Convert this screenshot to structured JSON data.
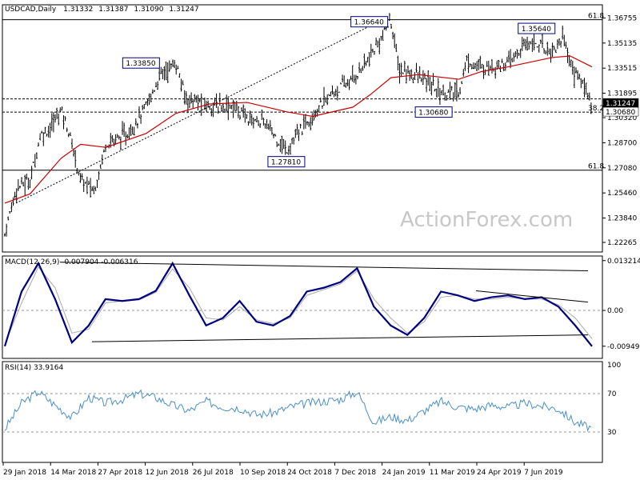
{
  "header": {
    "symbol": "USDCAD,Daily",
    "open": "1.31332",
    "high": "1.31387",
    "low": "1.31090",
    "close": "1.31247"
  },
  "watermark": "ActionForex.com",
  "chart_data": [
    {
      "type": "candlestick",
      "title": "USDCAD,Daily  1.31332 1.31387 1.31090 1.31247",
      "ylim": [
        1.2175,
        1.3745
      ],
      "y_ticks": [
        "1.36755",
        "1.35135",
        "1.33515",
        "1.31895",
        "1.30320",
        "1.28700",
        "1.27080",
        "1.25460",
        "1.23840",
        "1.22265"
      ],
      "current_price_label": "1.31247",
      "price_path": [
        {
          "x": "2018-01-29",
          "y": 1.228
        },
        {
          "x": "2018-02-08",
          "y": 1.258
        },
        {
          "x": "2018-02-20",
          "y": 1.263
        },
        {
          "x": "2018-03-01",
          "y": 1.292
        },
        {
          "x": "2018-03-09",
          "y": 1.296
        },
        {
          "x": "2018-03-19",
          "y": 1.309
        },
        {
          "x": "2018-03-26",
          "y": 1.293
        },
        {
          "x": "2018-04-05",
          "y": 1.263
        },
        {
          "x": "2018-04-17",
          "y": 1.256
        },
        {
          "x": "2018-04-27",
          "y": 1.287
        },
        {
          "x": "2018-05-15",
          "y": 1.292
        },
        {
          "x": "2018-06-01",
          "y": 1.31
        },
        {
          "x": "2018-06-14",
          "y": 1.332
        },
        {
          "x": "2018-06-27",
          "y": 1.338
        },
        {
          "x": "2018-07-05",
          "y": 1.316
        },
        {
          "x": "2018-07-26",
          "y": 1.311
        },
        {
          "x": "2018-08-15",
          "y": 1.311
        },
        {
          "x": "2018-08-28",
          "y": 1.303
        },
        {
          "x": "2018-09-12",
          "y": 1.3
        },
        {
          "x": "2018-10-01",
          "y": 1.282
        },
        {
          "x": "2018-10-24",
          "y": 1.306
        },
        {
          "x": "2018-11-12",
          "y": 1.32
        },
        {
          "x": "2018-11-28",
          "y": 1.328
        },
        {
          "x": "2018-12-13",
          "y": 1.342
        },
        {
          "x": "2018-12-31",
          "y": 1.366
        },
        {
          "x": "2019-01-07",
          "y": 1.334
        },
        {
          "x": "2019-01-24",
          "y": 1.33
        },
        {
          "x": "2019-02-14",
          "y": 1.319
        },
        {
          "x": "2019-02-28",
          "y": 1.319
        },
        {
          "x": "2019-03-07",
          "y": 1.34
        },
        {
          "x": "2019-03-20",
          "y": 1.335
        },
        {
          "x": "2019-04-01",
          "y": 1.337
        },
        {
          "x": "2019-04-12",
          "y": 1.338
        },
        {
          "x": "2019-05-01",
          "y": 1.353
        },
        {
          "x": "2019-05-20",
          "y": 1.346
        },
        {
          "x": "2019-05-31",
          "y": 1.356
        },
        {
          "x": "2019-06-05",
          "y": 1.337
        },
        {
          "x": "2019-06-12",
          "y": 1.33
        },
        {
          "x": "2019-06-20",
          "y": 1.32
        },
        {
          "x": "2019-06-24",
          "y": 1.312
        }
      ],
      "moving_average": [
        {
          "x": "2018-01-29",
          "y": 1.248
        },
        {
          "x": "2018-02-20",
          "y": 1.254
        },
        {
          "x": "2018-03-19",
          "y": 1.277
        },
        {
          "x": "2018-04-05",
          "y": 1.286
        },
        {
          "x": "2018-04-27",
          "y": 1.284
        },
        {
          "x": "2018-06-01",
          "y": 1.293
        },
        {
          "x": "2018-06-27",
          "y": 1.306
        },
        {
          "x": "2018-07-26",
          "y": 1.312
        },
        {
          "x": "2018-08-28",
          "y": 1.313
        },
        {
          "x": "2018-10-01",
          "y": 1.307
        },
        {
          "x": "2018-10-24",
          "y": 1.304
        },
        {
          "x": "2018-11-28",
          "y": 1.31
        },
        {
          "x": "2018-12-13",
          "y": 1.318
        },
        {
          "x": "2018-12-31",
          "y": 1.329
        },
        {
          "x": "2019-01-24",
          "y": 1.331
        },
        {
          "x": "2019-02-28",
          "y": 1.328
        },
        {
          "x": "2019-03-20",
          "y": 1.333
        },
        {
          "x": "2019-04-12",
          "y": 1.336
        },
        {
          "x": "2019-05-20",
          "y": 1.342
        },
        {
          "x": "2019-06-05",
          "y": 1.343
        },
        {
          "x": "2019-06-24",
          "y": 1.336
        }
      ],
      "annotations": [
        {
          "label": "1.33850",
          "x": "2018-06-14",
          "y": 1.3385
        },
        {
          "label": "1.36640",
          "x": "2018-12-31",
          "y": 1.3664
        },
        {
          "label": "1.27810",
          "x": "2018-10-01",
          "y": 1.2781
        },
        {
          "label": "1.30680",
          "x": "2019-01-24",
          "y": 1.3068
        },
        {
          "label": "1.35640",
          "x": "2019-05-20",
          "y": 1.3564
        }
      ],
      "horizontal_levels": [
        {
          "label": "61.8",
          "y": 1.3664
        },
        {
          "label": "61.8",
          "y": 1.2693
        },
        {
          "label": "38.2",
          "y": 1.3068
        },
        {
          "label": "",
          "y": 1.3153
        }
      ],
      "y_labels": [
        "1.31247",
        "1.30680"
      ]
    },
    {
      "type": "line",
      "title": "MACD(12,26,9) -0.007904 -0.006316",
      "ylim": [
        -0.0123,
        0.0138
      ],
      "y_ticks": [
        "0.013214",
        "0.00",
        "-0.009496"
      ],
      "series": [
        {
          "values": [
            -0.0095,
            0.005,
            0.0125,
            0.003,
            -0.0085,
            -0.004,
            0.003,
            0.0025,
            0.003,
            0.0052,
            0.0125,
            0.004,
            -0.004,
            -0.002,
            0.0025,
            -0.003,
            -0.004,
            -0.0015,
            0.005,
            0.006,
            0.0075,
            0.0112,
            0.001,
            -0.004,
            -0.0065,
            -0.002,
            0.005,
            0.004,
            0.0025,
            0.0035,
            0.004,
            0.003,
            0.0035,
            0.001,
            -0.004,
            -0.0095
          ]
        },
        {
          "values": [
            -0.009,
            0.002,
            0.0115,
            0.006,
            -0.006,
            -0.005,
            0.002,
            0.0025,
            0.0028,
            0.0048,
            0.011,
            0.006,
            -0.002,
            -0.0025,
            0.001,
            -0.0025,
            -0.0035,
            -0.002,
            0.004,
            0.0055,
            0.007,
            0.0105,
            0.003,
            -0.002,
            -0.006,
            -0.003,
            0.0035,
            0.004,
            0.003,
            0.003,
            0.0035,
            0.003,
            0.003,
            0.0015,
            -0.002,
            -0.0075
          ]
        }
      ]
    },
    {
      "type": "line",
      "title": "RSI(14) 33.9164",
      "ylim": [
        0,
        100
      ],
      "y_ticks": [
        "100",
        "70",
        "30",
        "0"
      ],
      "levels": [
        70,
        30
      ],
      "series": [
        {
          "values": [
            33,
            60,
            72,
            58,
            45,
            66,
            60,
            64,
            70,
            66,
            58,
            52,
            62,
            56,
            55,
            48,
            50,
            56,
            60,
            62,
            64,
            72,
            40,
            46,
            42,
            52,
            62,
            56,
            54,
            58,
            56,
            60,
            57,
            54,
            40,
            34
          ]
        }
      ]
    }
  ],
  "x_axis": {
    "labels": [
      "29 Jan 2018",
      "14 Mar 2018",
      "27 Apr 2018",
      "12 Jun 2018",
      "26 Jul 2018",
      "10 Sep 2018",
      "24 Oct 2018",
      "7 Dec 2018",
      "24 Jan 2019",
      "11 Mar 2019",
      "24 Apr 2019",
      "7 Jun 2019"
    ]
  },
  "colors": {
    "price": "#000000",
    "moving_average": "#cc0000",
    "macd": "#000080",
    "signal": "#aaaaaa",
    "rsi": "#4a90c8",
    "label_border": "#000080"
  }
}
